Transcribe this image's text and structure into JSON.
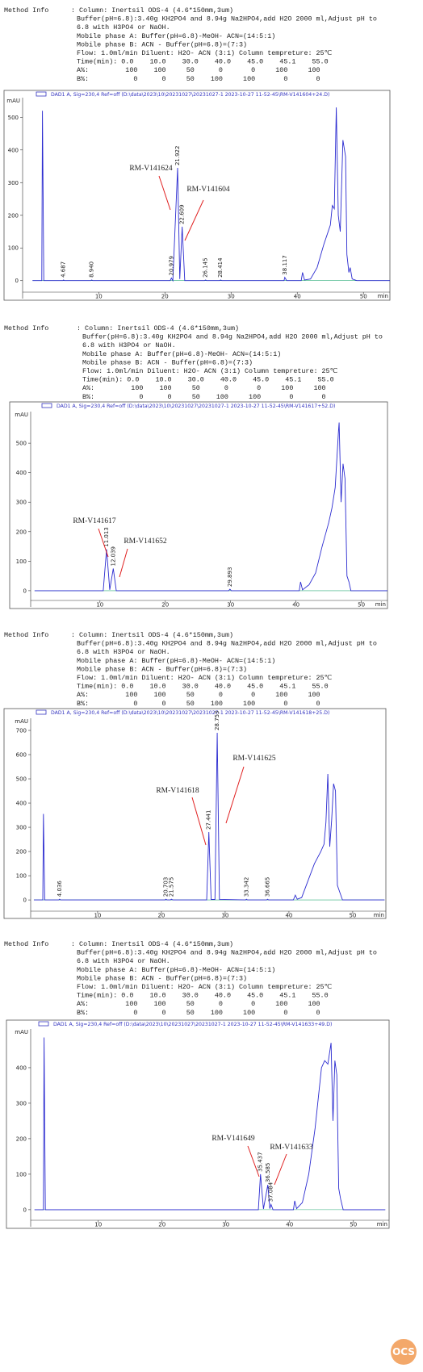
{
  "chart_data": [
    {
      "type": "line",
      "method_info": {
        "label": "Method Info",
        "lines": [
          ": Column: Inertsil ODS-4 (4.6*150mm,3um)",
          "Buffer(pH=6.8):3.40g KH2PO4 and 8.94g Na2HPO4,add H2O 2000 ml,Adjust pH to",
          "6.8 with H3PO4 or NaOH.",
          "Mobile phase A: Buffer(pH=6.8)-MeOH- ACN=(14:5:1)",
          "Mobile phase B: ACN - Buffer(pH=6.8)=(7:3)",
          "Flow: 1.0ml/min Diluent: H2O- ACN (3:1) Column tempreture: 25℃",
          "Time(min): 0.0    10.0    30.0    40.0    45.0    45.1    55.0",
          "A%:         100    100     50      0       0     100     100",
          "B%:           0      0     50    100     100       0       0"
        ]
      },
      "title": "DAD1 A, Sig=230,4 Ref=off (D:\\data\\2023\\10\\20231027\\20231027-1 2023-10-27 11-52-45\\RM-V141604+24.D)",
      "y_label": "mAU",
      "x_label": "min",
      "color": "#2b2bd0",
      "x": [
        0,
        1.4,
        1.5,
        1.7,
        4.6,
        4.687,
        4.8,
        8.8,
        8.94,
        9.1,
        20.8,
        20.979,
        21.2,
        21.922,
        22.25,
        22.609,
        23.0,
        26.0,
        26.145,
        26.3,
        28.3,
        28.414,
        28.6,
        38.0,
        38.117,
        38.4,
        40.6,
        40.8,
        41.1,
        42.0,
        43.0,
        44.0,
        44.5,
        45.0,
        45.3,
        45.6,
        45.9,
        46.2,
        46.5,
        46.9,
        47.3,
        47.5,
        47.8,
        48.0,
        48.3,
        49.0,
        54.0
      ],
      "values": [
        0,
        0,
        520,
        0,
        0,
        2,
        0,
        0,
        2,
        0,
        0,
        8,
        0,
        345,
        5,
        165,
        0,
        0,
        2,
        0,
        0,
        2,
        0,
        0,
        10,
        0,
        0,
        25,
        2,
        5,
        40,
        110,
        140,
        170,
        230,
        220,
        530,
        200,
        150,
        430,
        380,
        80,
        25,
        40,
        5,
        0,
        0
      ],
      "xlim": [
        -1.5,
        54
      ],
      "ylim": [
        -55,
        560
      ],
      "xticks": [
        10,
        20,
        30,
        40,
        50
      ],
      "yticks": [
        0,
        100,
        200,
        300,
        400,
        500
      ],
      "peaks": [
        4.687,
        {
          "value": 8.94,
          "label": "8.940"
        },
        20.979,
        21.922,
        22.609,
        26.145,
        28.414,
        38.117
      ],
      "annotations": [
        "RM-V141624",
        "RM-V141604"
      ]
    },
    {
      "type": "line",
      "method_info": {
        "label": "Method Info",
        "lines": [
          ": Column: Inertsil ODS-4 (4.6*150mm,3um)",
          "Buffer(pH=6.8):3.40g KH2PO4 and 8.94g Na2HPO4,add H2O 2000 ml,Adjust pH to",
          "6.8 with H3PO4 or NaOH.",
          "Mobile phase A: Buffer(pH=6.8)-MeOH- ACN=(14:5:1)",
          "Mobile phase B: ACN - Buffer(pH=6.8)=(7:3)",
          "Flow: 1.0ml/min Diluent: H2O- ACN (3:1) Column tempreture: 25℃",
          "Time(min): 0.0    10.0    30.0    40.0    45.0    45.1    55.0",
          "A%:         100    100     50      0       0     100     100",
          "B%:           0      0     50    100     100       0       0"
        ]
      },
      "title": "DAD1 A, Sig=230,4 Ref=off (D:\\data\\2023\\10\\20231027\\20231027-1 2023-10-27 11-52-45\\RM-V141617+52.D)",
      "y_label": "mAU",
      "x_label": "min",
      "color": "#2b2bd0",
      "x": [
        0,
        10.5,
        11.013,
        11.5,
        12.039,
        12.5,
        29.7,
        29.893,
        30.1,
        40.5,
        40.7,
        41.0,
        42.0,
        43.0,
        44.0,
        45.0,
        45.5,
        46.0,
        46.5,
        46.6,
        46.9,
        47.2,
        47.5,
        47.8,
        48.1,
        48.4,
        54.0
      ],
      "values": [
        0,
        0,
        140,
        3,
        75,
        0,
        0,
        5,
        0,
        0,
        30,
        3,
        20,
        60,
        150,
        230,
        280,
        350,
        540,
        570,
        300,
        430,
        380,
        50,
        30,
        0,
        0
      ],
      "xlim": [
        -0.6,
        54
      ],
      "ylim": [
        -55,
        607
      ],
      "xticks": [
        10,
        20,
        30,
        40,
        50
      ],
      "yticks": [
        0,
        100,
        200,
        300,
        400,
        500
      ],
      "peaks": [
        11.013,
        12.039,
        29.893
      ],
      "annotations": [
        "RM-V141617",
        "RM-V141652"
      ]
    },
    {
      "type": "line",
      "method_info": {
        "label": "Method Info",
        "lines": [
          ": Column: Inertsil ODS-4 (4.6*150mm,3um)",
          "Buffer(pH=6.8):3.40g KH2PO4 and 8.94g Na2HPO4,add H2O 2000 ml,Adjust pH to",
          "6.8 with H3PO4 or NaOH.",
          "Mobile phase A: Buffer(pH=6.8)-MeOH- ACN=(14:5:1)",
          "Mobile phase B: ACN - Buffer(pH=6.8)=(7:3)",
          "Flow: 1.0ml/min Diluent: H2O- ACN (3:1) Column tempreture: 25℃",
          "Time(min): 0.0    10.0    30.0    40.0    45.0    45.1    55.0",
          "A%:         100    100     50      0       0     100     100",
          "B%:           0      0     50    100     100       0       0"
        ]
      },
      "title": "DAD1 A, Sig=230,4 Ref=off (D:\\data\\2023\\10\\20231027\\20231027-1 2023-10-27 11-52-45\\RM-V141618+25.D)",
      "y_label": "mAU",
      "x_label": "min",
      "color": "#2b2bd0",
      "x": [
        0,
        1.4,
        1.5,
        1.7,
        3.9,
        4.036,
        4.2,
        20.6,
        20.703,
        20.9,
        21.4,
        21.575,
        21.8,
        27.1,
        27.441,
        27.8,
        28.4,
        28.753,
        29.1,
        33.2,
        33.342,
        33.5,
        36.5,
        36.665,
        36.8,
        40.7,
        41.0,
        41.3,
        42.0,
        43.0,
        44.0,
        45.0,
        45.5,
        45.8,
        46.1,
        46.4,
        46.7,
        47.0,
        47.3,
        47.6,
        48.0,
        48.4,
        55.0
      ],
      "values": [
        0,
        0,
        355,
        0,
        0,
        3,
        0,
        0,
        3,
        0,
        0,
        3,
        0,
        0,
        280,
        2,
        2,
        690,
        2,
        0,
        3,
        0,
        0,
        3,
        0,
        0,
        20,
        3,
        10,
        80,
        150,
        200,
        230,
        320,
        520,
        220,
        330,
        480,
        450,
        60,
        30,
        0,
        0
      ],
      "xlim": [
        -0.5,
        55.2
      ],
      "ylim": [
        -73,
        750
      ],
      "xticks": [
        10,
        20,
        30,
        40,
        50
      ],
      "yticks": [
        0,
        100,
        200,
        300,
        400,
        500,
        600,
        700
      ],
      "peaks": [
        4.036,
        20.703,
        21.575,
        27.441,
        28.753,
        33.342,
        36.665
      ],
      "annotations": [
        "RM-V141618",
        "RM-V141625"
      ]
    },
    {
      "type": "line",
      "method_info": {
        "label": "Method Info",
        "lines": [
          ": Column: Inertsil ODS-4 (4.6*150mm,3um)",
          "Buffer(pH=6.8):3.40g KH2PO4 and 8.94g Na2HPO4,add H2O 2000 ml,Adjust pH to",
          "6.8 with H3PO4 or NaOH.",
          "Mobile phase A: Buffer(pH=6.8)-MeOH- ACN=(14:5:1)",
          "Mobile phase B: ACN - Buffer(pH=6.8)=(7:3)",
          "Flow: 1.0ml/min Diluent: H2O- ACN (3:1) Column tempreture: 25℃",
          "Time(min): 0.0    10.0    30.0    40.0    45.0    45.1    55.0",
          "A%:         100    100     50      0       0     100     100",
          "B%:           0      0     50    100     100       0       0"
        ]
      },
      "title": "DAD1 A, Sig=230,4 Ref=off (D:\\data\\2023\\10\\20231027\\20231027-1 2023-10-27 11-52-45\\RM-V141633+49.D)",
      "y_label": "mAU",
      "x_label": "min",
      "color": "#2b2bd0",
      "x": [
        0,
        1.4,
        1.5,
        1.7,
        35.1,
        35.437,
        35.9,
        36.585,
        36.9,
        37.084,
        37.4,
        40.6,
        40.8,
        41.1,
        42.0,
        43.0,
        44.0,
        45.0,
        45.5,
        46.0,
        46.5,
        46.8,
        47.1,
        47.4,
        47.7,
        48.0,
        48.4,
        55.0
      ],
      "values": [
        0,
        0,
        485,
        0,
        0,
        100,
        2,
        70,
        3,
        15,
        0,
        0,
        25,
        3,
        20,
        100,
        230,
        400,
        420,
        410,
        470,
        250,
        420,
        380,
        60,
        30,
        0,
        0
      ],
      "xlim": [
        -0.6,
        55.6
      ],
      "ylim": [
        -48,
        509
      ],
      "xticks": [
        10,
        20,
        30,
        40,
        50
      ],
      "yticks": [
        0,
        100,
        200,
        300,
        400
      ],
      "peaks": [
        35.437,
        36.585,
        37.084
      ],
      "annotations": [
        "RM-V141649",
        "RM-V141633"
      ]
    }
  ],
  "watermark": "OCS"
}
